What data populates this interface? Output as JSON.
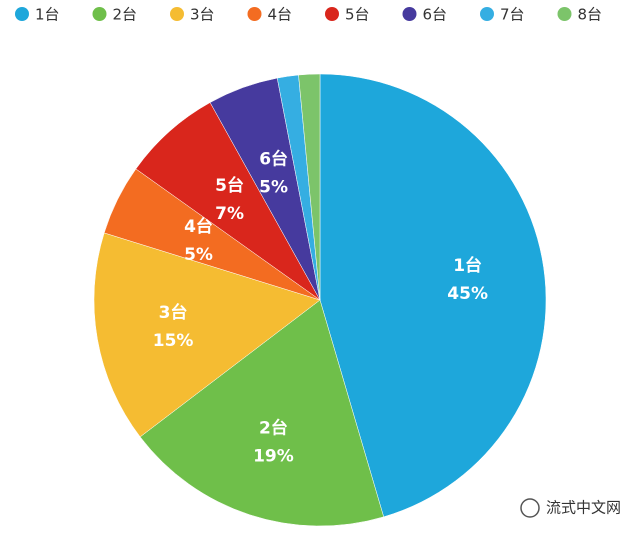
{
  "chart_data": {
    "type": "pie",
    "categories": [
      "1台",
      "2台",
      "3台",
      "4台",
      "5台",
      "6台",
      "7台",
      "8台"
    ],
    "values": [
      45,
      19,
      15,
      5,
      7,
      5,
      1.5,
      1.5
    ],
    "value_labels": [
      "45%",
      "19%",
      "15%",
      "5%",
      "7%",
      "5%",
      null,
      null
    ],
    "colors": [
      "#1ea7db",
      "#6fbf4a",
      "#f5bc32",
      "#f36c21",
      "#d9261c",
      "#463a9e",
      "#35aee2",
      "#7cc46a"
    ],
    "legend": "top"
  },
  "watermark": "流式中文网"
}
